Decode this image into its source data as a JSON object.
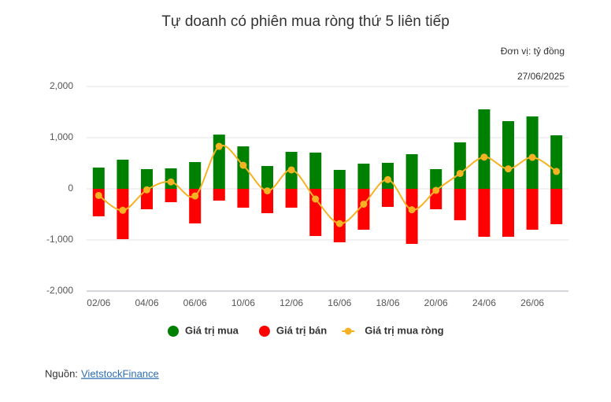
{
  "chart_data": {
    "type": "bar-line",
    "title": "Tự doanh có phiên mua ròng thứ 5 liên tiếp",
    "unit": "Đơn vị: tỷ đồng",
    "date": "27/06/2025",
    "source_label": "Nguồn:",
    "source_link": "VietstockFinance",
    "categories": [
      "02/06",
      null,
      "04/06",
      null,
      "06/06",
      null,
      "10/06",
      null,
      "12/06",
      null,
      "16/06",
      null,
      "18/06",
      null,
      "20/06",
      null,
      "24/06",
      null,
      "26/06",
      null
    ],
    "series": [
      {
        "name": "Giá trị mua",
        "type": "bar",
        "color": "#008000",
        "values": [
          415,
          570,
          385,
          400,
          523,
          1060,
          830,
          446,
          723,
          708,
          370,
          492,
          508,
          677,
          385,
          908,
          1554,
          1323,
          1415,
          1046
        ]
      },
      {
        "name": "Giá trị bán",
        "type": "bar",
        "color": "#ff0000",
        "values": [
          -538,
          -985,
          -400,
          -262,
          -677,
          -231,
          -369,
          -477,
          -369,
          -923,
          -1046,
          -800,
          -354,
          -1077,
          -400,
          -615,
          -938,
          -938,
          -800,
          -692
        ]
      },
      {
        "name": "Giá trị mua ròng",
        "type": "line",
        "color": "#f5b324",
        "values": [
          -130,
          -420,
          -20,
          135,
          -140,
          830,
          460,
          -40,
          370,
          -200,
          -680,
          -300,
          180,
          -410,
          -30,
          300,
          620,
          390,
          615,
          340
        ]
      }
    ],
    "ylim": [
      -2000,
      2000
    ],
    "yticks": [
      {
        "value": -2000,
        "label": "-2,000"
      },
      {
        "value": -1000,
        "label": "-1,000"
      },
      0,
      {
        "value": 1000,
        "label": "1,000"
      },
      {
        "value": 2000,
        "label": "2,000"
      }
    ],
    "grid": true
  }
}
